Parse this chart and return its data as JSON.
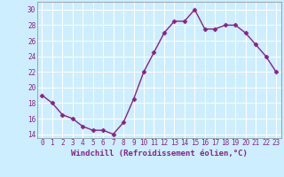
{
  "x": [
    0,
    1,
    2,
    3,
    4,
    5,
    6,
    7,
    8,
    9,
    10,
    11,
    12,
    13,
    14,
    15,
    16,
    17,
    18,
    19,
    20,
    21,
    22,
    23
  ],
  "y": [
    19,
    18,
    16.5,
    16,
    15,
    14.5,
    14.5,
    14,
    15.5,
    18.5,
    22,
    24.5,
    27,
    28.5,
    28.5,
    30,
    27.5,
    27.5,
    28,
    28,
    27,
    25.5,
    24,
    22
  ],
  "line_color": "#882288",
  "marker": "D",
  "marker_size": 2.5,
  "linewidth": 1.0,
  "bg_color": "#cceeff",
  "grid_color": "#ffffff",
  "xlabel": "Windchill (Refroidissement éolien,°C)",
  "xlabel_color": "#882288",
  "xlabel_fontsize": 6.5,
  "tick_label_color": "#882288",
  "tick_fontsize": 5.5,
  "ylim": [
    13.5,
    31
  ],
  "yticks": [
    14,
    16,
    18,
    20,
    22,
    24,
    26,
    28,
    30
  ],
  "xlim": [
    -0.5,
    23.5
  ],
  "xtick_labels": [
    "0",
    "1",
    "2",
    "3",
    "4",
    "5",
    "6",
    "7",
    "8",
    "9",
    "10",
    "11",
    "12",
    "13",
    "14",
    "15",
    "16",
    "17",
    "18",
    "19",
    "20",
    "21",
    "22",
    "23"
  ]
}
